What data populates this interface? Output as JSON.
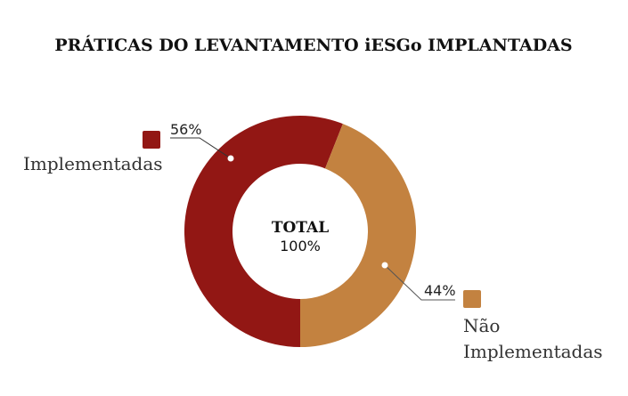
{
  "chart_data": {
    "type": "pie",
    "variant": "donut",
    "title": "PRÁTICAS DO LEVANTAMENTO iESGo IMPLANTADAS",
    "center_label": "TOTAL",
    "center_value": "100%",
    "slices": [
      {
        "name": "Implementadas",
        "value": 56,
        "label": "56%",
        "color": "#921714"
      },
      {
        "name_lines": [
          "Não",
          "Implementadas"
        ],
        "name": "Não Implementadas",
        "value": 44,
        "label": "44%",
        "color": "#C38240"
      }
    ]
  }
}
